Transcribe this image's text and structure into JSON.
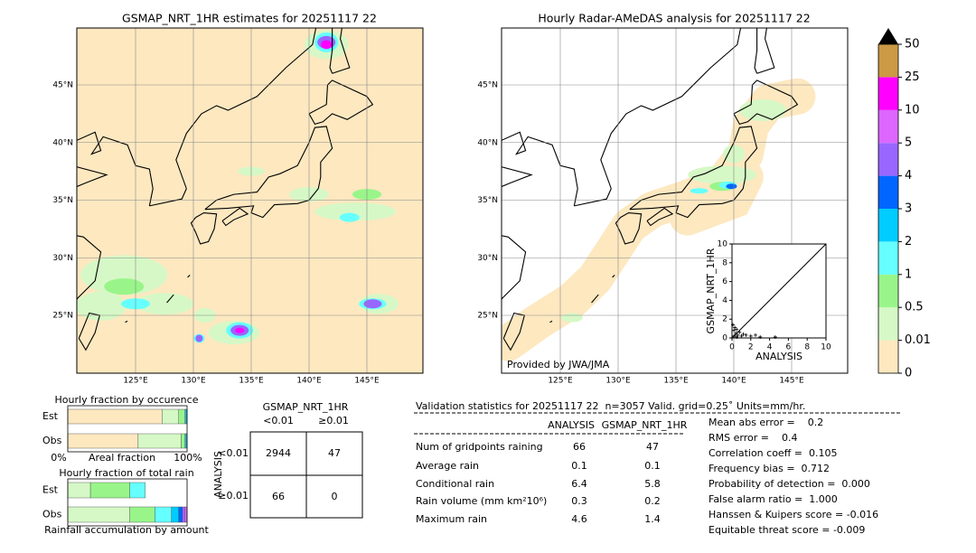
{
  "left_map": {
    "title": "GSMAP_NRT_1HR estimates for 20251117 22",
    "lon_labels": [
      "125°E",
      "130°E",
      "135°E",
      "140°E",
      "145°E"
    ],
    "lat_labels": [
      "45°N",
      "40°N",
      "35°N",
      "30°N",
      "25°N"
    ]
  },
  "right_map": {
    "title": "Hourly Radar-AMeDAS analysis for 20251117 22",
    "lon_labels": [
      "125°E",
      "130°E",
      "135°E",
      "140°E",
      "145°E"
    ],
    "lat_labels": [
      "45°N",
      "40°N",
      "35°N",
      "30°N",
      "25°N"
    ],
    "credit": "Provided by JWA/JMA"
  },
  "colorbar": {
    "labels": [
      "0",
      "0.01",
      "0.5",
      "1",
      "2",
      "3",
      "4",
      "5",
      "10",
      "25",
      "50"
    ],
    "colors": [
      "#fde8c0",
      "#d6f8c6",
      "#99f58a",
      "#66ffff",
      "#00ccff",
      "#0066ff",
      "#9966ff",
      "#dd66ff",
      "#ff00ff",
      "#cc9944"
    ],
    "extend_color": "#000000"
  },
  "scatter": {
    "xlabel": "ANALYSIS",
    "ylabel": "GSMAP_NRT_1HR",
    "xlim": [
      0,
      10
    ],
    "ylim": [
      0,
      10
    ],
    "xticks": [
      0,
      2,
      4,
      6,
      8,
      10
    ],
    "yticks": [
      0,
      2,
      4,
      6,
      8,
      10
    ],
    "x": [
      0.1,
      0.2,
      0.3,
      0.4,
      0.5,
      0.6,
      0.8,
      1.0,
      1.2,
      1.5,
      2,
      2.5,
      3,
      4.6,
      0.2,
      0.5
    ],
    "y": [
      1.4,
      0.8,
      1.1,
      0.5,
      0.9,
      0.3,
      0.6,
      0.2,
      0.4,
      0.3,
      0.2,
      0.3,
      0.1,
      0.1,
      0.2,
      0.1
    ]
  },
  "occurrence": {
    "title": "Hourly fraction by occurence",
    "rows": [
      "Est",
      "Obs"
    ],
    "axis_labels": [
      "0%",
      "Areal fraction",
      "100%"
    ],
    "segments": [
      [
        79,
        14,
        5,
        1,
        1
      ],
      [
        59,
        36,
        3,
        1,
        1
      ]
    ]
  },
  "total_rain": {
    "title": "Hourly fraction of total rain",
    "rows": [
      "Est",
      "Obs"
    ],
    "xlabel": "Rainfall accumulation by amount",
    "segments": [
      [
        0,
        19,
        33,
        13
      ],
      [
        0,
        52,
        21,
        14,
        6,
        3,
        2,
        2
      ]
    ]
  },
  "contingency": {
    "title": "GSMAP_NRT_1HR",
    "col_headers": [
      "<0.01",
      "≥0.01"
    ],
    "row_title": "ANALYSIS",
    "row_headers": [
      "<0.01",
      "≥0.01"
    ],
    "cells": [
      [
        2944,
        47
      ],
      [
        66,
        0
      ]
    ]
  },
  "stats": {
    "header": "Validation statistics for 20251117 22  n=3057 Valid. grid=0.25˚ Units=mm/hr.",
    "columns": [
      "ANALYSIS",
      "GSMAP_NRT_1HR"
    ],
    "rows": [
      {
        "label": "Num of gridpoints raining",
        "values": [
          66,
          47
        ]
      },
      {
        "label": "Average rain",
        "values": [
          0.1,
          0.1
        ]
      },
      {
        "label": "Conditional rain",
        "values": [
          6.4,
          5.8
        ]
      },
      {
        "label": "Rain volume (mm km²10⁶)",
        "values": [
          0.3,
          0.2
        ]
      },
      {
        "label": "Maximum rain",
        "values": [
          4.6,
          1.4
        ]
      }
    ],
    "scores": [
      "Mean abs error =    0.2",
      "RMS error =    0.4",
      "Correlation coeff =  0.105",
      "Frequency bias =  0.712",
      "Probability of detection =  0.000",
      "False alarm ratio =  1.000",
      "Hanssen & Kuipers score = -0.016",
      "Equitable threat score = -0.009"
    ]
  }
}
